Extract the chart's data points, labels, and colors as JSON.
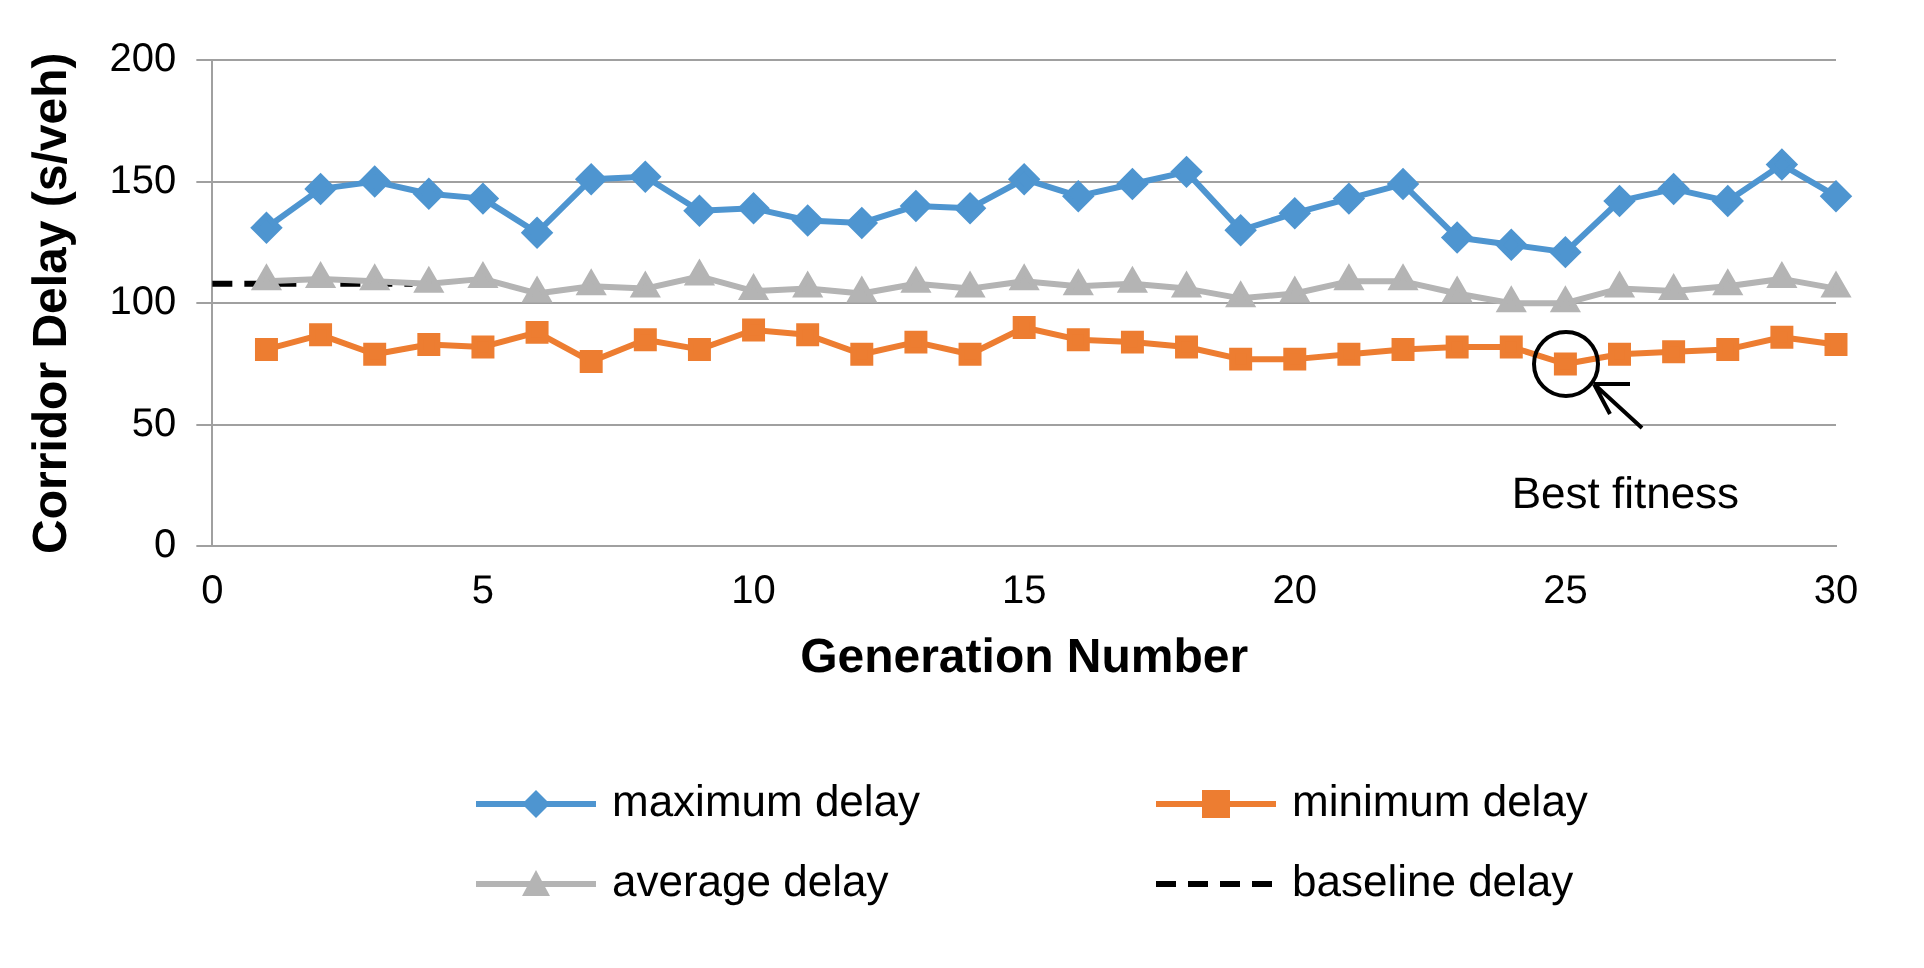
{
  "chart_data": {
    "type": "line",
    "xlabel": "Generation Number",
    "ylabel": "Corridor Delay (s/veh)",
    "x": [
      1,
      2,
      3,
      4,
      5,
      6,
      7,
      8,
      9,
      10,
      11,
      12,
      13,
      14,
      15,
      16,
      17,
      18,
      19,
      20,
      21,
      22,
      23,
      24,
      25,
      26,
      27,
      28,
      29,
      30
    ],
    "series": [
      {
        "name": "maximum delay",
        "color": "#4e95d0",
        "marker": "diamond",
        "values": [
          131,
          147,
          150,
          145,
          143,
          129,
          151,
          152,
          138,
          139,
          134,
          133,
          140,
          139,
          151,
          144,
          149,
          154,
          130,
          137,
          143,
          149,
          127,
          124,
          121,
          142,
          147,
          142,
          157,
          144
        ]
      },
      {
        "name": "minimum delay",
        "color": "#ed7d31",
        "marker": "square",
        "values": [
          81,
          87,
          79,
          83,
          82,
          88,
          76,
          85,
          81,
          89,
          87,
          79,
          84,
          79,
          90,
          85,
          84,
          82,
          77,
          77,
          79,
          81,
          82,
          82,
          75,
          79,
          80,
          81,
          86,
          83
        ]
      },
      {
        "name": "average delay",
        "color": "#b4b4b4",
        "marker": "triangle",
        "values": [
          109,
          110,
          109,
          108,
          110,
          104,
          107,
          106,
          111,
          105,
          106,
          104,
          108,
          106,
          109,
          107,
          108,
          106,
          102,
          104,
          109,
          109,
          104,
          100,
          100,
          106,
          105,
          107,
          110,
          106
        ]
      },
      {
        "name": "baseline delay",
        "color": "#000000",
        "marker": "none",
        "line_style": "dashed",
        "x": [
          0,
          3.7
        ],
        "values": [
          108,
          108
        ]
      }
    ],
    "xlim": [
      0,
      30
    ],
    "xticks": [
      0,
      5,
      10,
      15,
      20,
      25,
      30
    ],
    "ylim": [
      0,
      200
    ],
    "yticks": [
      0,
      50,
      100,
      150,
      200
    ],
    "grid": "y",
    "legend": "bottom",
    "annotations": [
      {
        "text": "Best fitness",
        "x": 25,
        "y": 75
      }
    ]
  }
}
